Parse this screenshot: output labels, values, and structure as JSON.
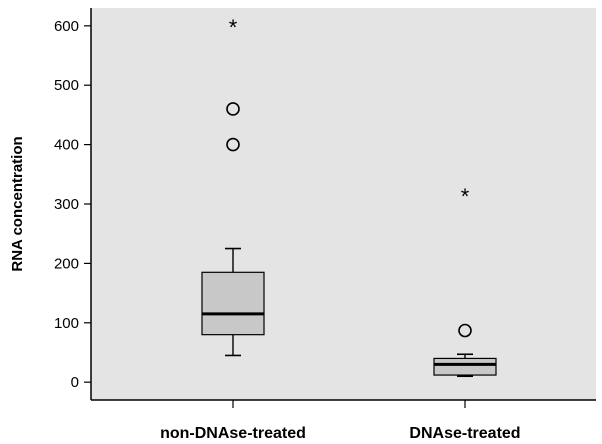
{
  "chart_data": {
    "type": "boxplot",
    "title": "",
    "xlabel": "",
    "ylabel": "RNA concentration",
    "ylim": [
      -30,
      630
    ],
    "yticks": [
      0,
      100,
      200,
      300,
      400,
      500,
      600
    ],
    "grid": false,
    "legend": "none",
    "colors": {
      "plot_background": "#e4e4e4",
      "box_fill": "#c8c8c8",
      "lines": "#000000"
    },
    "categories": [
      "non-DNAse-treated",
      "DNAse-treated"
    ],
    "boxes": [
      {
        "category": "non-DNAse-treated",
        "whisker_low": 45,
        "q1": 80,
        "median": 115,
        "q3": 185,
        "whisker_high": 225,
        "outliers": [
          400,
          460
        ],
        "extremes": [
          600
        ]
      },
      {
        "category": "DNAse-treated",
        "whisker_low": 10,
        "q1": 12,
        "median": 30,
        "q3": 40,
        "whisker_high": 47,
        "outliers": [
          87
        ],
        "extremes": [
          315
        ]
      }
    ]
  }
}
